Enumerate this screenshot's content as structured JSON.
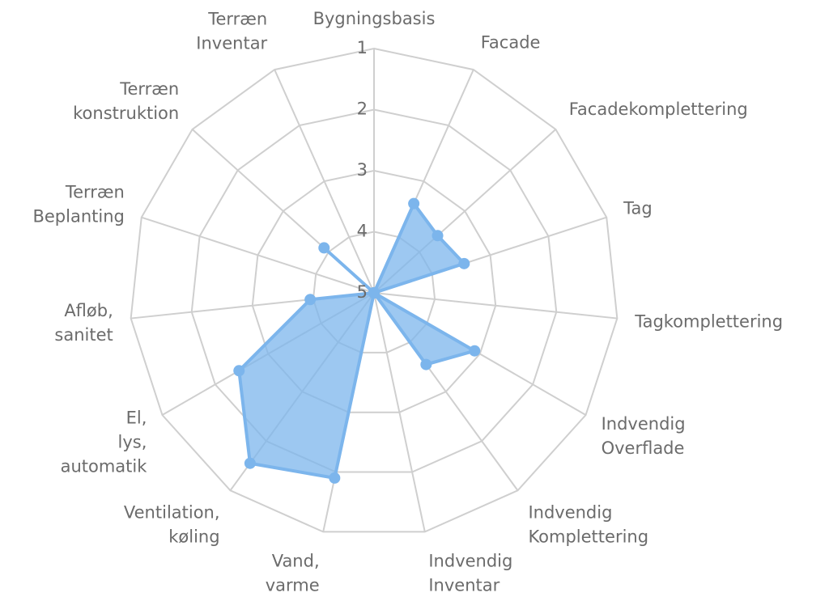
{
  "chart_data": {
    "type": "radar",
    "categories": [
      "Bygningsbasis",
      "Facade",
      "Facadekomplettering",
      "Tag",
      "Tagkomplettering",
      "Indvendig\nOverflade",
      "Indvendig\nKomplettering",
      "Indvendig\nInventar",
      "Vand,\nvarme",
      "Ventilation,\nkøling",
      "El,\nlys,\nautomatik",
      "Afløb,\nsanitet",
      "Terræn\nBeplanting",
      "Terræn\nkonstruktion",
      "Terræn\nInventar"
    ],
    "series": [
      {
        "color": "#7cb5ec",
        "values": [
          5,
          3.4,
          3.6,
          3.45,
          5,
          3.1,
          3.55,
          5,
          1.9,
          1.55,
          2.45,
          3.95,
          5,
          3.9,
          5
        ]
      }
    ],
    "ylim": [
      5,
      1
    ],
    "yticks": [
      1,
      2,
      3,
      4,
      5
    ],
    "grid": true
  }
}
